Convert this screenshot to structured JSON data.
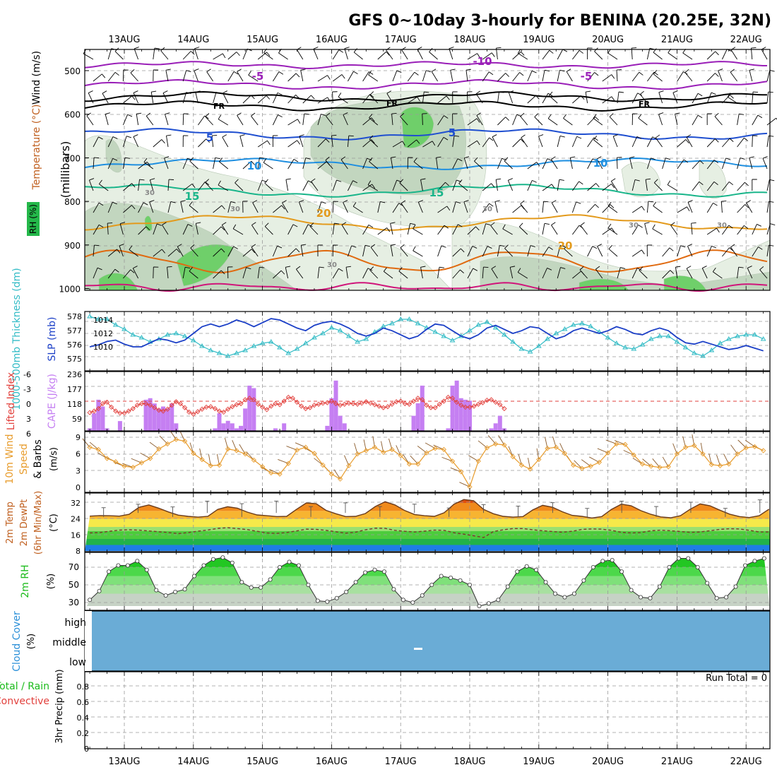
{
  "title": "GFS 0~10day 3-hourly for BENINA (20.25E, 32N)",
  "dates": [
    "13AUG",
    "14AUG",
    "15AUG",
    "16AUG",
    "17AUG",
    "18AUG",
    "19AUG",
    "20AUG",
    "21AUG",
    "22AUG"
  ],
  "colors": {
    "temp_purple": "#9a1fb8",
    "temp_black": "#000000",
    "temp_blue5": "#1f4fd0",
    "temp_blue10": "#1f8fe0",
    "temp_teal15": "#19b58a",
    "temp_orange20": "#e39a1c",
    "temp_dark_orange": "#e06a10",
    "temp_magenta": "#d0157a",
    "rh_light": "#e6efe3",
    "rh_mid": "#c2d6bf",
    "rh_dark": "#6fcf6a",
    "thickness": "#33bcc6",
    "slp": "#1b3fc7",
    "cape": "#c57ff2",
    "lifted_index": "#e2403c",
    "wind": "#e89c2c",
    "rh2m": "#1bbb1b",
    "cloud": "#6aacd6"
  },
  "panels": {
    "upper": {
      "y_title": "(millibars)",
      "left_labels": [
        "Wind (m/s)",
        "Temperature (°C)",
        "RH (%)"
      ],
      "pressure_ticks": [
        "500",
        "600",
        "700",
        "800",
        "900",
        "1000"
      ],
      "contour_labels": [
        "-10",
        "-5",
        "-5",
        "FR",
        "FR",
        "FR",
        "5",
        "5",
        "10",
        "10",
        "15",
        "15",
        "20",
        "20",
        "30",
        "30",
        "30",
        "30",
        "30",
        "30"
      ]
    },
    "thickness": {
      "left_label": "1000-500mb Thickness (dm)",
      "right_label": "SLP (mb)",
      "thick_ticks": [
        "578",
        "577",
        "576",
        "575"
      ],
      "slp_ticks": [
        "1014",
        "1012",
        "1010"
      ]
    },
    "cape": {
      "left_label": "Lifted Index",
      "right_label": "CAPE (J/kg)",
      "li_ticks": [
        "-6",
        "-3",
        "0",
        "3",
        "6"
      ],
      "cape_ticks": [
        "236",
        "177",
        "118",
        "59"
      ]
    },
    "wind10": {
      "labels": [
        "10m Wind",
        "Speed",
        "& Barbs"
      ],
      "unit": "(m/s)",
      "ticks": [
        "9",
        "6",
        "3",
        "0"
      ]
    },
    "temp2m": {
      "labels": [
        "2m Temp",
        "2m DewPt",
        "(6hr Min/Max)"
      ],
      "unit": "(°C)",
      "ticks": [
        "32",
        "24",
        "16",
        "8"
      ]
    },
    "rh2m": {
      "label": "2m RH",
      "unit": "(%)",
      "ticks": [
        "70",
        "50",
        "30"
      ]
    },
    "cloud": {
      "label": "Cloud Cover",
      "unit": "(%)",
      "levels": [
        "high",
        "middle",
        "low"
      ],
      "center_mark": "-"
    },
    "precip": {
      "labels": [
        "Total / Rain",
        "Convective"
      ],
      "unit": "3hr Precip (mm)",
      "run_total": "Run Total = 0",
      "ticks": [
        "0.8",
        "0.6",
        "0.4",
        "0.2",
        "0"
      ]
    }
  },
  "chart_data": [
    {
      "type": "line",
      "title": "1000-500mb Thickness (dm) / SLP (mb)",
      "x_start": "12 Aug 12Z",
      "x_step_hours": 3,
      "series": [
        {
          "name": "1000-500mb Thickness (dm)",
          "ylim": [
            574.6,
            578.4
          ],
          "values": [
            578.0,
            577.8,
            577.8,
            577.4,
            577.1,
            576.7,
            576.5,
            576.2,
            576.4,
            576.7,
            576.8,
            576.6,
            576.3,
            575.9,
            575.6,
            575.4,
            575.2,
            575.4,
            575.6,
            575.9,
            576.1,
            576.2,
            575.8,
            575.4,
            575.7,
            576.1,
            576.5,
            576.8,
            577.2,
            577.0,
            576.6,
            576.2,
            576.4,
            576.9,
            577.3,
            577.5,
            577.8,
            577.8,
            577.5,
            577.2,
            576.9,
            576.6,
            576.3,
            576.6,
            577.0,
            577.4,
            577.6,
            577.2,
            576.7,
            576.2,
            575.7,
            575.5,
            575.9,
            576.4,
            576.8,
            577.1,
            577.4,
            577.5,
            577.3,
            576.9,
            576.5,
            576.1,
            575.8,
            575.7,
            576.0,
            576.4,
            576.6,
            576.6,
            576.2,
            575.8,
            575.4,
            575.2,
            575.6,
            576.1,
            576.4,
            576.6,
            576.7,
            576.7,
            576.4,
            576.2,
            576.0,
            576.3,
            576.8,
            577.2,
            577.5,
            577.7,
            577.9,
            578.0
          ]
        },
        {
          "name": "SLP (mb)",
          "ylim": [
            1008.6,
            1015.6
          ],
          "values": [
            1010.0,
            1010.3,
            1010.8,
            1011.0,
            1010.4,
            1010.0,
            1010.0,
            1010.6,
            1011.2,
            1011.0,
            1010.6,
            1011.0,
            1012.0,
            1013.0,
            1013.4,
            1013.0,
            1013.4,
            1014.0,
            1013.6,
            1013.0,
            1013.6,
            1014.2,
            1014.0,
            1013.4,
            1012.8,
            1012.4,
            1013.2,
            1013.6,
            1013.8,
            1013.4,
            1012.8,
            1012.0,
            1011.6,
            1012.0,
            1012.8,
            1012.4,
            1011.8,
            1011.2,
            1011.6,
            1012.6,
            1013.4,
            1013.2,
            1012.4,
            1011.6,
            1011.2,
            1011.8,
            1012.8,
            1013.2,
            1012.6,
            1012.0,
            1012.4,
            1013.0,
            1012.8,
            1012.0,
            1011.2,
            1011.6,
            1012.4,
            1012.8,
            1012.4,
            1012.0,
            1012.4,
            1013.0,
            1012.6,
            1012.0,
            1011.8,
            1012.4,
            1012.8,
            1012.4,
            1011.4,
            1010.6,
            1010.4,
            1010.8,
            1010.4,
            1010.0,
            1009.6,
            1009.8,
            1010.2,
            1009.8,
            1009.4,
            1010.4,
            1011.0,
            1011.0,
            1011.4,
            1012.6,
            1013.2,
            1013.8,
            1014.4,
            1014.8
          ]
        }
      ]
    },
    {
      "type": "bar",
      "title": "Lifted Index / CAPE (J/kg)",
      "x_start": "12 Aug 12Z",
      "x_step_hours": 3,
      "series": [
        {
          "name": "CAPE (J/kg)",
          "ylim": [
            0,
            236
          ],
          "values": [
            10,
            70,
            124,
            97,
            10,
            0,
            0,
            39,
            0,
            0,
            0,
            0,
            0,
            124,
            130,
            109,
            89,
            97,
            89,
            109,
            30,
            0,
            0,
            0,
            0,
            0,
            0,
            0,
            0,
            10,
            70,
            30,
            40,
            30,
            10,
            20,
            89,
            180,
            170,
            0,
            0,
            0,
            0,
            10,
            0,
            30,
            0,
            0,
            0,
            0,
            0,
            0,
            0,
            0,
            0,
            20,
            130,
            200,
            60,
            30,
            0,
            0,
            0,
            0,
            0,
            0,
            0,
            0,
            0,
            0,
            0,
            0,
            0,
            0,
            0,
            60,
            110,
            180,
            0,
            0,
            0,
            0,
            0,
            10,
            180,
            200,
            130,
            124,
            120,
            0,
            0,
            0,
            0,
            10,
            30,
            60,
            10,
            0
          ]
        },
        {
          "name": "Lifted Index",
          "ylim": [
            6,
            -6
          ],
          "values": [
            2.3,
            2.0,
            1.5,
            0.5,
            0.2,
            1.2,
            2.0,
            2.4,
            2.4,
            2.0,
            1.5,
            0.8,
            0.5,
            0.5,
            0.8,
            1.3,
            1.8,
            2.0,
            1.6,
            0.8,
            0.1,
            0.5,
            1.3,
            2.2,
            2.6,
            2.1,
            1.6,
            1.2,
            1.1,
            1.5,
            2.0,
            2.2,
            1.6,
            1.1,
            0.7,
            0.5,
            -0.3,
            -0.6,
            -0.3,
            0.6,
            1.2,
            1.7,
            1.0,
            0.5,
            0.7,
            0.0,
            -0.8,
            -0.6,
            0.2,
            1.0,
            1.5,
            1.3,
            0.8,
            0.6,
            0.4,
            0.3,
            0.0,
            0.5,
            0.8,
            0.6,
            0.4,
            0.5,
            0.6,
            0.4,
            0.1,
            0.4,
            0.7,
            1.0,
            1.3,
            1.1,
            0.6,
            0.1,
            0.0,
            0.5,
            0.6,
            0.0,
            -0.6,
            -0.3,
            0.8,
            1.3,
            1.3,
            0.6,
            0.0,
            -0.8,
            -0.6,
            0.2,
            0.8,
            1.2,
            1.2,
            1.0,
            0.6,
            0.3,
            -0.2,
            -0.3,
            0.2,
            0.7,
            1.5
          ]
        }
      ]
    },
    {
      "type": "line",
      "title": "10m Wind Speed (m/s)",
      "ylim": [
        0,
        9
      ],
      "x_start": "12 Aug 12Z",
      "x_step_hours": 3,
      "series": [
        {
          "name": "10m Wind Speed",
          "values": [
            7.2,
            6.8,
            5.2,
            4.6,
            3.8,
            3.6,
            4.4,
            5.2,
            6.9,
            7.8,
            8.6,
            8.3,
            6.1,
            5.0,
            3.9,
            4.0,
            6.9,
            6.6,
            6.0,
            4.9,
            3.7,
            2.6,
            2.4,
            4.3,
            6.7,
            7.2,
            6.1,
            4.0,
            2.4,
            1.5,
            3.9,
            6.0,
            6.6,
            7.2,
            6.3,
            6.8,
            5.7,
            4.2,
            4.2,
            6.2,
            7.0,
            6.8,
            4.7,
            2.8,
            0.1,
            4.7,
            7.1,
            7.8,
            7.6,
            5.5,
            4.0,
            3.3,
            5.0,
            7.0,
            7.2,
            6.1,
            4.0,
            3.4,
            3.8,
            4.5,
            6.2,
            7.8,
            7.7,
            5.8,
            4.2,
            3.8,
            3.6,
            3.7,
            6.0,
            7.2,
            7.5,
            6.0,
            4.1,
            3.9,
            4.2,
            6.0,
            7.1,
            7.3,
            6.6,
            4.5,
            4.3,
            5.5,
            7.5,
            7.9,
            8.0,
            6.1,
            5.4,
            4.6
          ]
        }
      ]
    },
    {
      "type": "area",
      "title": "2m Temp / 2m DewPt (°C)",
      "ylim": [
        8,
        36
      ],
      "x_start": "12 Aug 12Z",
      "x_step_hours": 3,
      "series": [
        {
          "name": "2m Temp",
          "values": [
            25.4,
            25.7,
            25.6,
            25.4,
            26.3,
            29.8,
            31.0,
            29.4,
            27.5,
            25.9,
            25.3,
            24.9,
            25.3,
            28.8,
            30.1,
            29.4,
            27.4,
            26.0,
            25.6,
            25.2,
            25.3,
            28.8,
            32.0,
            31.6,
            28.3,
            26.6,
            25.2,
            25.3,
            26.7,
            30.2,
            32.6,
            31.0,
            28.2,
            26.2,
            25.6,
            25.3,
            27.1,
            31.4,
            33.7,
            33.1,
            28.8,
            26.6,
            25.3,
            24.9,
            25.2,
            28.5,
            30.8,
            29.9,
            27.6,
            25.8,
            25.3,
            24.5,
            25.2,
            28.8,
            31.4,
            30.6,
            28.1,
            26.3,
            25.0,
            24.6,
            25.6,
            28.9,
            31.5,
            30.6,
            28.4,
            26.4,
            25.2,
            24.7,
            25.6,
            28.9,
            31.4,
            30.8,
            28.6,
            26.6,
            25.4,
            24.6,
            25.2
          ]
        },
        {
          "name": "2m DewPt",
          "values": [
            17.0,
            17.2,
            17.8,
            18.4,
            18.6,
            18.4,
            18.0,
            17.6,
            17.2,
            16.7,
            17.2,
            17.9,
            18.5,
            19.3,
            19.6,
            19.2,
            18.7,
            17.8,
            17.0,
            16.8,
            17.2,
            18.0,
            18.9,
            18.8,
            18.3,
            17.6,
            16.9,
            17.4,
            18.6,
            19.4,
            19.3,
            18.3,
            17.8,
            17.5,
            17.9,
            18.4,
            18.3,
            17.1,
            16.4,
            15.6,
            14.7,
            17.7,
            18.6,
            19.2,
            19.2,
            18.6,
            18.1,
            17.7,
            17.4,
            17.8,
            18.8,
            19.0,
            18.9,
            18.3,
            17.3,
            17.0,
            17.2,
            18.1,
            18.4,
            18.1,
            17.7,
            17.3,
            17.5,
            18.1,
            18.8,
            19.1,
            19.0,
            18.3,
            17.5,
            17.5,
            18.4,
            18.4,
            18.3,
            17.6,
            17.2,
            17.4,
            17.8
          ]
        }
      ]
    },
    {
      "type": "area",
      "title": "2m RH (%)",
      "ylim": [
        26,
        85
      ],
      "x_start": "12 Aug 12Z",
      "x_step_hours": 3,
      "series": [
        {
          "name": "2m RH",
          "values": [
            33,
            43,
            65,
            72,
            72,
            77,
            67,
            44,
            38,
            42,
            45,
            60,
            72,
            79,
            81,
            75,
            53,
            47,
            47,
            56,
            70,
            76,
            72,
            50,
            32,
            31,
            35,
            42,
            53,
            64,
            67,
            65,
            45,
            33,
            30,
            38,
            50,
            60,
            58,
            55,
            50,
            26,
            29,
            33,
            48,
            65,
            71,
            67,
            53,
            40,
            36,
            40,
            55,
            70,
            77,
            78,
            65,
            44,
            36,
            35,
            48,
            70,
            80,
            80,
            70,
            52,
            35,
            36,
            48,
            72,
            77,
            80,
            66,
            36,
            35,
            37,
            55,
            73,
            86,
            76,
            68
          ]
        }
      ]
    },
    {
      "type": "bar",
      "title": "3hr Precip (mm)",
      "ylim": [
        0,
        1
      ],
      "categories": [
        "13AUG",
        "14AUG",
        "15AUG",
        "16AUG",
        "17AUG",
        "18AUG",
        "19AUG",
        "20AUG",
        "21AUG",
        "22AUG"
      ],
      "values": [
        0,
        0,
        0,
        0,
        0,
        0,
        0,
        0,
        0,
        0
      ]
    }
  ]
}
